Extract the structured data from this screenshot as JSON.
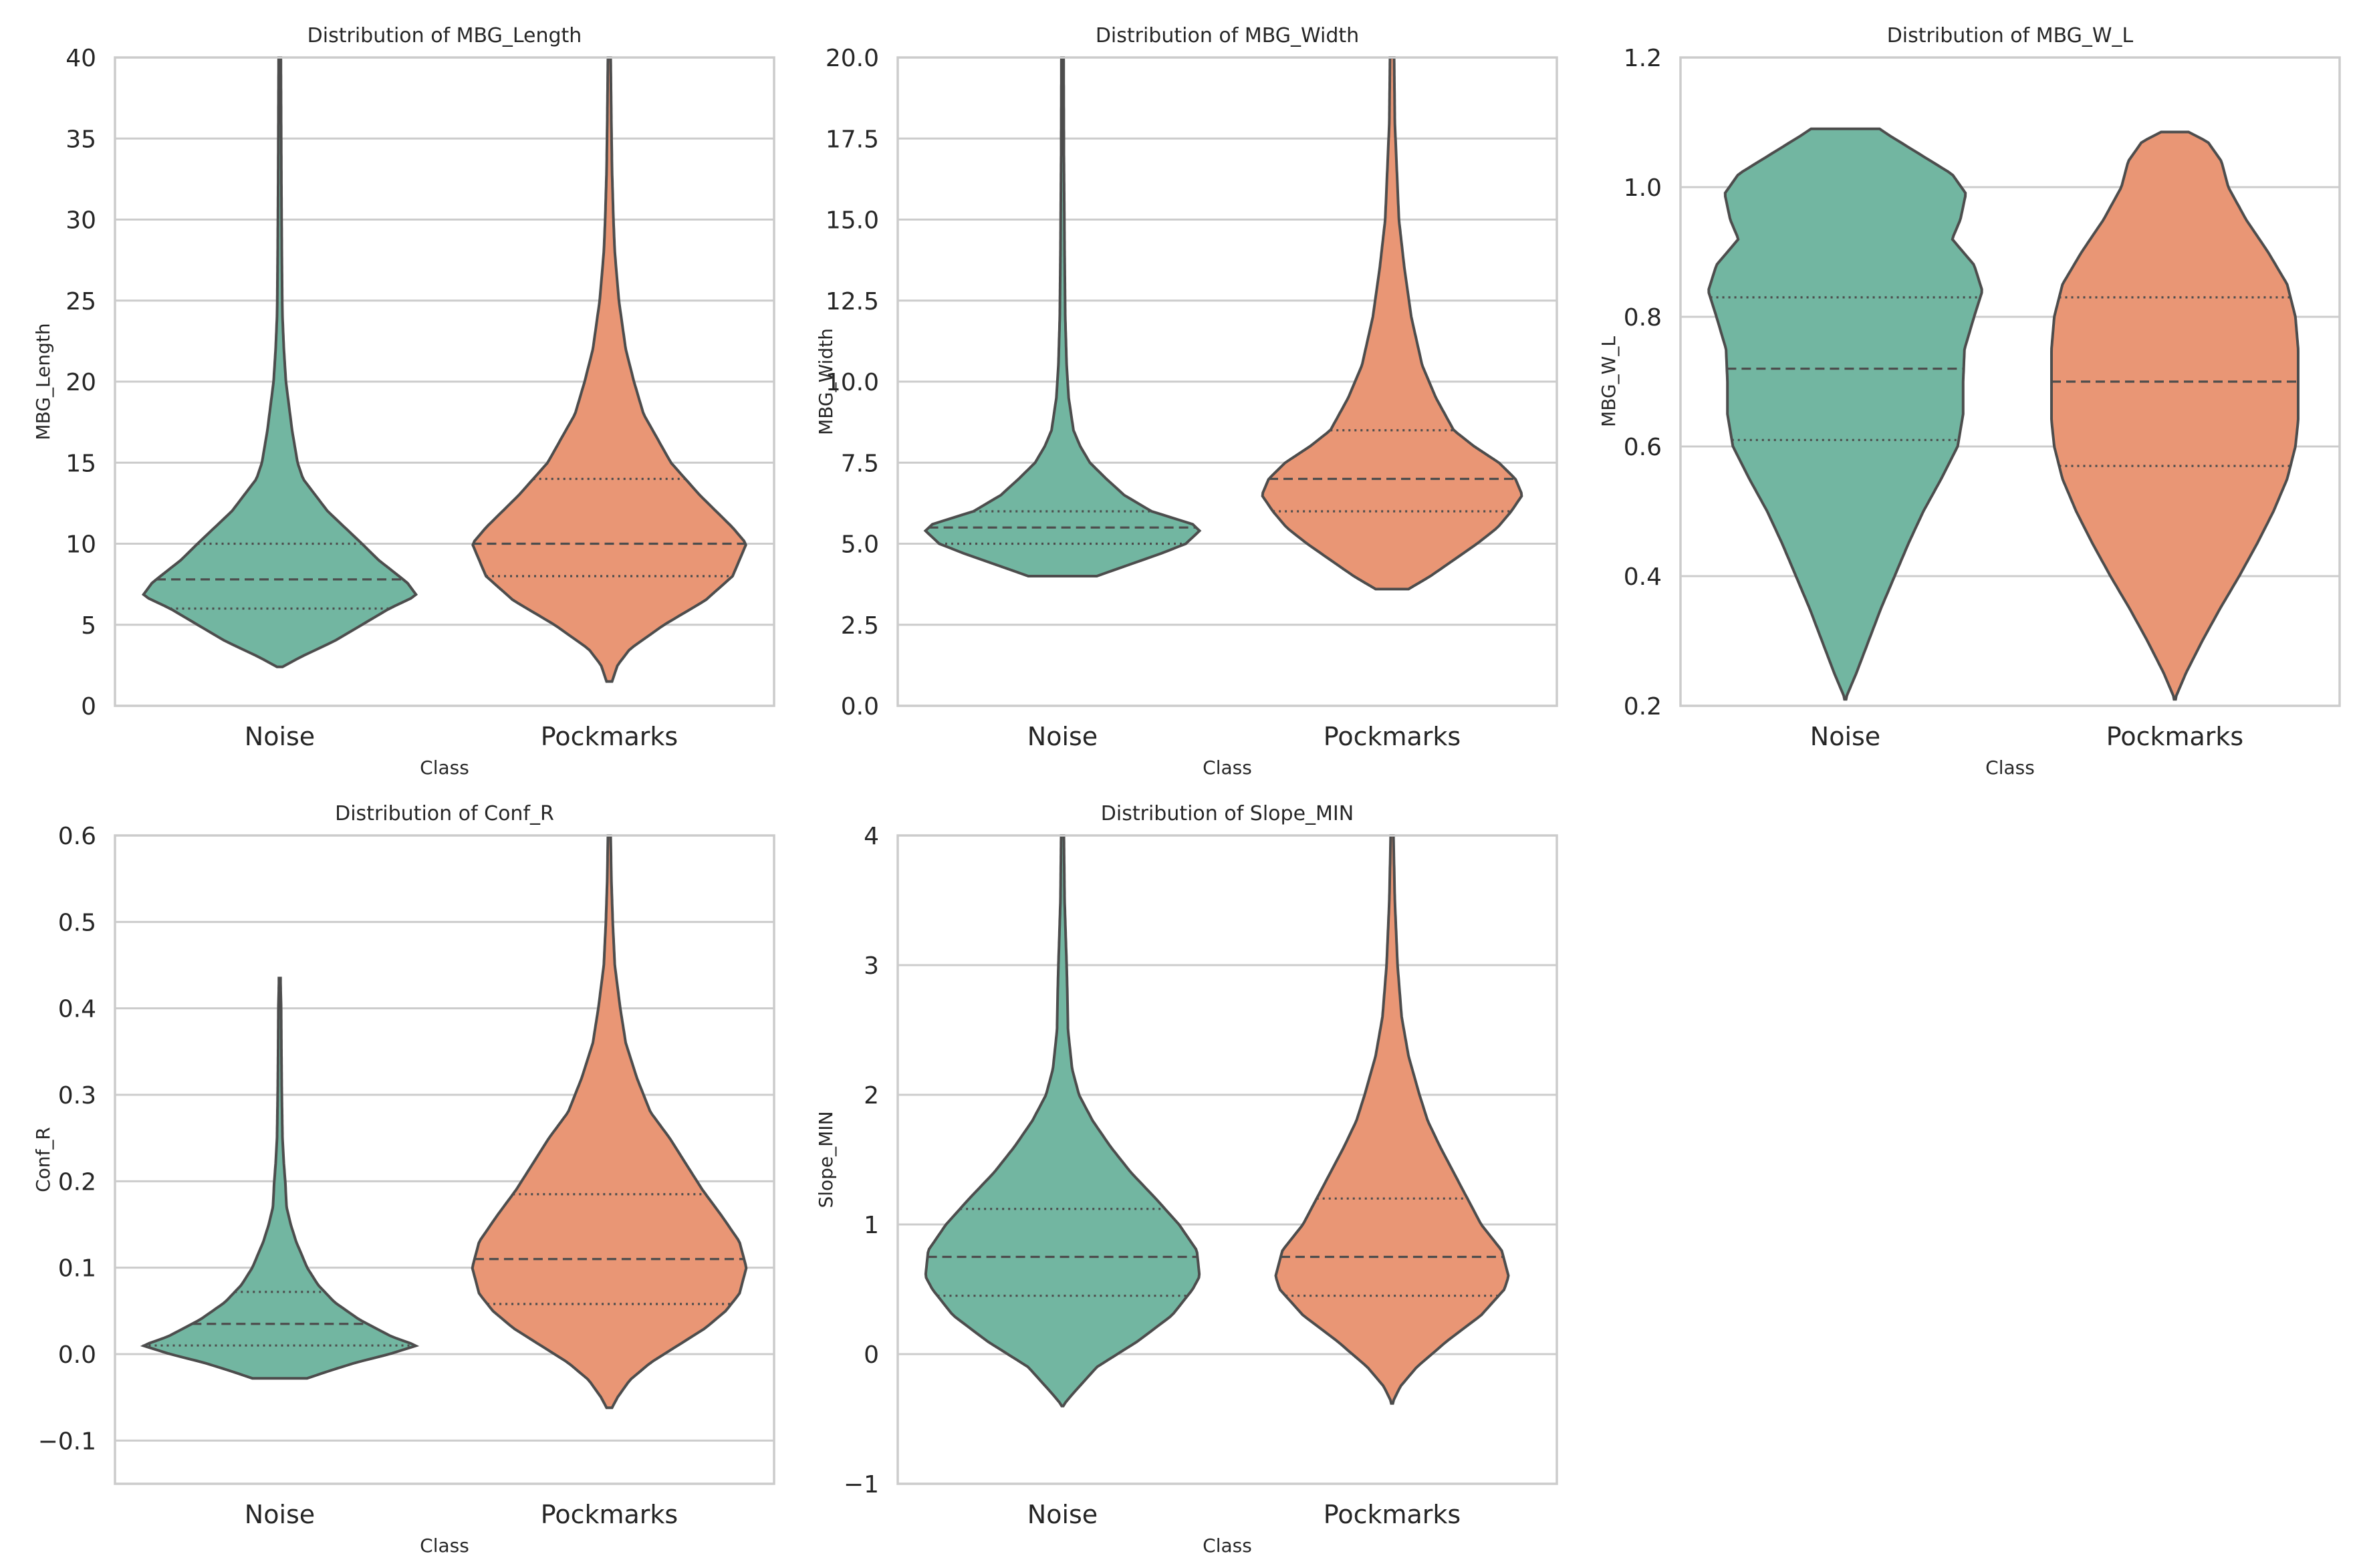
{
  "figure": {
    "style": {
      "noise_color": "#72b6a1",
      "pockmarks_color": "#e99675",
      "edge_color": "#4d4d4d",
      "grid_color": "#cccccc",
      "spine_color": "#cccccc",
      "background": "#ffffff"
    }
  },
  "chart_data": [
    {
      "type": "violin",
      "title": "Distribution of MBG_Length",
      "xlabel": "Class",
      "ylabel": "MBG_Length",
      "categories": [
        "Noise",
        "Pockmarks"
      ],
      "ylim": [
        0,
        40
      ],
      "yticks": [
        0,
        5,
        10,
        15,
        20,
        25,
        30,
        35,
        40
      ],
      "ytick_labels": [
        "0",
        "5",
        "10",
        "15",
        "20",
        "25",
        "30",
        "35",
        "40"
      ],
      "grid": true,
      "series": [
        {
          "name": "Noise",
          "color": "#72b6a1",
          "q1": 6.0,
          "median": 7.8,
          "q3": 10.0,
          "profile": [
            [
              2.4,
              0.02
            ],
            [
              3,
              0.15
            ],
            [
              4,
              0.4
            ],
            [
              5,
              0.6
            ],
            [
              6,
              0.8
            ],
            [
              6.8,
              1.0
            ],
            [
              7.6,
              0.93
            ],
            [
              9,
              0.72
            ],
            [
              10,
              0.6
            ],
            [
              12,
              0.35
            ],
            [
              14,
              0.17
            ],
            [
              15,
              0.13
            ],
            [
              17,
              0.09
            ],
            [
              19,
              0.06
            ],
            [
              20,
              0.045
            ],
            [
              22,
              0.03
            ],
            [
              24,
              0.02
            ],
            [
              25,
              0.018
            ],
            [
              28,
              0.015
            ],
            [
              32,
              0.012
            ],
            [
              36,
              0.01
            ],
            [
              40,
              0.008
            ]
          ]
        },
        {
          "name": "Pockmarks",
          "color": "#e99675",
          "q1": 8.0,
          "median": 10.0,
          "q3": 14.0,
          "profile": [
            [
              1.5,
              0.02
            ],
            [
              2.5,
              0.06
            ],
            [
              3.5,
              0.15
            ],
            [
              5,
              0.4
            ],
            [
              6.5,
              0.7
            ],
            [
              8,
              0.9
            ],
            [
              10,
              1.0
            ],
            [
              11,
              0.9
            ],
            [
              13,
              0.66
            ],
            [
              15,
              0.45
            ],
            [
              18,
              0.25
            ],
            [
              20,
              0.18
            ],
            [
              22,
              0.12
            ],
            [
              25,
              0.07
            ],
            [
              28,
              0.04
            ],
            [
              30,
              0.03
            ],
            [
              33,
              0.02
            ],
            [
              36,
              0.015
            ],
            [
              40,
              0.01
            ]
          ]
        }
      ]
    },
    {
      "type": "violin",
      "title": "Distribution of MBG_Width",
      "xlabel": "Class",
      "ylabel": "MBG_Width",
      "categories": [
        "Noise",
        "Pockmarks"
      ],
      "ylim": [
        0,
        20
      ],
      "yticks": [
        0,
        2.5,
        5,
        7.5,
        10,
        12.5,
        15,
        17.5,
        20
      ],
      "ytick_labels": [
        "0.0",
        "2.5",
        "5.0",
        "7.5",
        "10.0",
        "12.5",
        "15.0",
        "17.5",
        "20.0"
      ],
      "grid": true,
      "series": [
        {
          "name": "Noise",
          "color": "#72b6a1",
          "q1": 5.0,
          "median": 5.5,
          "q3": 6.0,
          "profile": [
            [
              4.0,
              0.25
            ],
            [
              4.3,
              0.45
            ],
            [
              4.7,
              0.72
            ],
            [
              5.0,
              0.9
            ],
            [
              5.4,
              1.0
            ],
            [
              5.6,
              0.95
            ],
            [
              6.0,
              0.65
            ],
            [
              6.5,
              0.45
            ],
            [
              7,
              0.32
            ],
            [
              7.5,
              0.2
            ],
            [
              8,
              0.13
            ],
            [
              8.5,
              0.08
            ],
            [
              9.5,
              0.045
            ],
            [
              10.5,
              0.03
            ],
            [
              12,
              0.02
            ],
            [
              14,
              0.015
            ],
            [
              17,
              0.01
            ],
            [
              20,
              0.008
            ]
          ]
        },
        {
          "name": "Pockmarks",
          "color": "#e99675",
          "q1": 6.0,
          "median": 7.0,
          "q3": 8.5,
          "profile": [
            [
              3.6,
              0.12
            ],
            [
              4.0,
              0.28
            ],
            [
              4.5,
              0.45
            ],
            [
              5.0,
              0.62
            ],
            [
              5.5,
              0.77
            ],
            [
              6.0,
              0.87
            ],
            [
              6.5,
              0.95
            ],
            [
              7.0,
              0.9
            ],
            [
              7.5,
              0.78
            ],
            [
              8.0,
              0.6
            ],
            [
              8.5,
              0.45
            ],
            [
              9.5,
              0.32
            ],
            [
              10.5,
              0.22
            ],
            [
              12,
              0.14
            ],
            [
              13.5,
              0.09
            ],
            [
              15,
              0.05
            ],
            [
              16.5,
              0.035
            ],
            [
              18,
              0.02
            ],
            [
              20,
              0.015
            ]
          ]
        }
      ]
    },
    {
      "type": "violin",
      "title": "Distribution of MBG_W_L",
      "xlabel": "Class",
      "ylabel": "MBG_W_L",
      "categories": [
        "Noise",
        "Pockmarks"
      ],
      "ylim": [
        0.2,
        1.2
      ],
      "yticks": [
        0.2,
        0.4,
        0.6,
        0.8,
        1.0,
        1.2
      ],
      "ytick_labels": [
        "0.2",
        "0.4",
        "0.6",
        "0.8",
        "1.0",
        "1.2"
      ],
      "grid": true,
      "series": [
        {
          "name": "Noise",
          "color": "#72b6a1",
          "q1": 0.61,
          "median": 0.72,
          "q3": 0.83,
          "profile": [
            [
              0.21,
              0.0
            ],
            [
              0.25,
              0.08
            ],
            [
              0.3,
              0.17
            ],
            [
              0.35,
              0.26
            ],
            [
              0.4,
              0.36
            ],
            [
              0.45,
              0.46
            ],
            [
              0.5,
              0.57
            ],
            [
              0.55,
              0.7
            ],
            [
              0.6,
              0.82
            ],
            [
              0.65,
              0.86
            ],
            [
              0.7,
              0.86
            ],
            [
              0.75,
              0.87
            ],
            [
              0.8,
              0.94
            ],
            [
              0.84,
              1.0
            ],
            [
              0.88,
              0.94
            ],
            [
              0.92,
              0.78
            ],
            [
              0.95,
              0.84
            ],
            [
              0.99,
              0.88
            ],
            [
              1.02,
              0.78
            ],
            [
              1.05,
              0.55
            ],
            [
              1.08,
              0.32
            ],
            [
              1.09,
              0.25
            ]
          ]
        },
        {
          "name": "Pockmarks",
          "color": "#e99675",
          "q1": 0.57,
          "median": 0.7,
          "q3": 0.83,
          "profile": [
            [
              0.21,
              0.0
            ],
            [
              0.25,
              0.08
            ],
            [
              0.3,
              0.2
            ],
            [
              0.35,
              0.33
            ],
            [
              0.4,
              0.47
            ],
            [
              0.45,
              0.6
            ],
            [
              0.5,
              0.72
            ],
            [
              0.55,
              0.82
            ],
            [
              0.6,
              0.88
            ],
            [
              0.64,
              0.9
            ],
            [
              0.7,
              0.9
            ],
            [
              0.75,
              0.9
            ],
            [
              0.8,
              0.88
            ],
            [
              0.85,
              0.82
            ],
            [
              0.9,
              0.68
            ],
            [
              0.95,
              0.52
            ],
            [
              1.0,
              0.39
            ],
            [
              1.04,
              0.34
            ],
            [
              1.07,
              0.24
            ],
            [
              1.085,
              0.1
            ]
          ]
        }
      ]
    },
    {
      "type": "violin",
      "title": "Distribution of Conf_R",
      "xlabel": "Class",
      "ylabel": "Conf_R",
      "categories": [
        "Noise",
        "Pockmarks"
      ],
      "ylim": [
        -0.15,
        0.6
      ],
      "yticks": [
        -0.1,
        0.0,
        0.1,
        0.2,
        0.3,
        0.4,
        0.5,
        0.6
      ],
      "ytick_labels": [
        "−0.1",
        "0.0",
        "0.1",
        "0.2",
        "0.3",
        "0.4",
        "0.5",
        "0.6"
      ],
      "grid": true,
      "series": [
        {
          "name": "Noise",
          "color": "#72b6a1",
          "q1": 0.01,
          "median": 0.035,
          "q3": 0.072,
          "profile": [
            [
              -0.028,
              0.2
            ],
            [
              -0.02,
              0.35
            ],
            [
              -0.01,
              0.55
            ],
            [
              0.0,
              0.8
            ],
            [
              0.01,
              1.0
            ],
            [
              0.02,
              0.82
            ],
            [
              0.04,
              0.58
            ],
            [
              0.06,
              0.4
            ],
            [
              0.08,
              0.28
            ],
            [
              0.1,
              0.2
            ],
            [
              0.13,
              0.12
            ],
            [
              0.15,
              0.08
            ],
            [
              0.17,
              0.05
            ],
            [
              0.2,
              0.04
            ],
            [
              0.22,
              0.03
            ],
            [
              0.25,
              0.02
            ],
            [
              0.3,
              0.015
            ],
            [
              0.35,
              0.012
            ],
            [
              0.4,
              0.01
            ],
            [
              0.435,
              0.005
            ]
          ]
        },
        {
          "name": "Pockmarks",
          "color": "#e99675",
          "q1": 0.058,
          "median": 0.11,
          "q3": 0.185,
          "profile": [
            [
              -0.062,
              0.02
            ],
            [
              -0.05,
              0.06
            ],
            [
              -0.03,
              0.15
            ],
            [
              -0.01,
              0.3
            ],
            [
              0.01,
              0.5
            ],
            [
              0.03,
              0.7
            ],
            [
              0.05,
              0.85
            ],
            [
              0.07,
              0.95
            ],
            [
              0.1,
              1.0
            ],
            [
              0.13,
              0.95
            ],
            [
              0.16,
              0.82
            ],
            [
              0.19,
              0.68
            ],
            [
              0.22,
              0.56
            ],
            [
              0.25,
              0.44
            ],
            [
              0.28,
              0.3
            ],
            [
              0.32,
              0.2
            ],
            [
              0.36,
              0.12
            ],
            [
              0.4,
              0.08
            ],
            [
              0.45,
              0.04
            ],
            [
              0.5,
              0.025
            ],
            [
              0.55,
              0.015
            ],
            [
              0.6,
              0.01
            ]
          ]
        }
      ]
    },
    {
      "type": "violin",
      "title": "Distribution of Slope_MIN",
      "xlabel": "Class",
      "ylabel": "Slope_MIN",
      "categories": [
        "Noise",
        "Pockmarks"
      ],
      "ylim": [
        -1,
        4
      ],
      "yticks": [
        -1,
        0,
        1,
        2,
        3,
        4
      ],
      "ytick_labels": [
        "−1",
        "0",
        "1",
        "2",
        "3",
        "4"
      ],
      "grid": true,
      "series": [
        {
          "name": "Noise",
          "color": "#72b6a1",
          "q1": 0.45,
          "median": 0.75,
          "q3": 1.12,
          "profile": [
            [
              -0.4,
              0.0
            ],
            [
              -0.3,
              0.08
            ],
            [
              -0.1,
              0.25
            ],
            [
              0.1,
              0.55
            ],
            [
              0.3,
              0.8
            ],
            [
              0.5,
              0.95
            ],
            [
              0.6,
              1.0
            ],
            [
              0.8,
              0.98
            ],
            [
              1.0,
              0.85
            ],
            [
              1.2,
              0.68
            ],
            [
              1.4,
              0.5
            ],
            [
              1.6,
              0.35
            ],
            [
              1.8,
              0.22
            ],
            [
              2.0,
              0.12
            ],
            [
              2.2,
              0.07
            ],
            [
              2.5,
              0.04
            ],
            [
              2.8,
              0.035
            ],
            [
              3.0,
              0.03
            ],
            [
              3.5,
              0.015
            ],
            [
              4.0,
              0.01
            ]
          ]
        },
        {
          "name": "Pockmarks",
          "color": "#e99675",
          "q1": 0.45,
          "median": 0.75,
          "q3": 1.2,
          "profile": [
            [
              -0.38,
              0.0
            ],
            [
              -0.25,
              0.06
            ],
            [
              -0.1,
              0.18
            ],
            [
              0.1,
              0.4
            ],
            [
              0.3,
              0.65
            ],
            [
              0.5,
              0.82
            ],
            [
              0.6,
              0.85
            ],
            [
              0.8,
              0.8
            ],
            [
              1.0,
              0.65
            ],
            [
              1.2,
              0.55
            ],
            [
              1.4,
              0.45
            ],
            [
              1.6,
              0.35
            ],
            [
              1.8,
              0.26
            ],
            [
              2.0,
              0.2
            ],
            [
              2.3,
              0.12
            ],
            [
              2.6,
              0.07
            ],
            [
              3.0,
              0.04
            ],
            [
              3.5,
              0.02
            ],
            [
              4.0,
              0.01
            ]
          ]
        }
      ]
    }
  ]
}
